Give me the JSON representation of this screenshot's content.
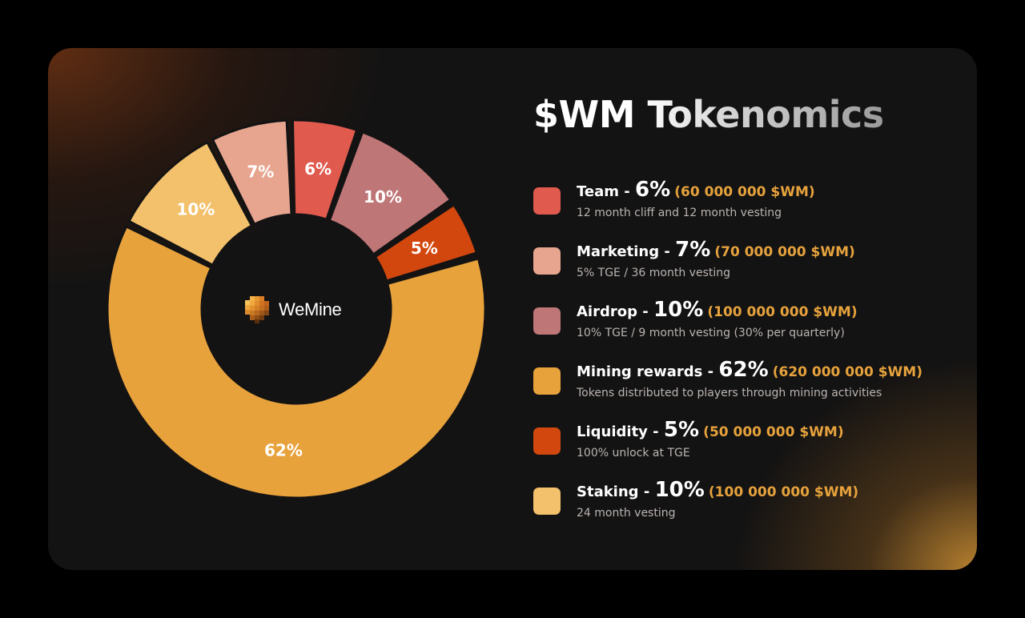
{
  "title": "$WM Tokenomics",
  "brand": {
    "name": "WeMine",
    "logo_icon": "wemine-pixel-logo-icon"
  },
  "chart_data": {
    "type": "pie",
    "style": "donut",
    "title": "$WM Tokenomics",
    "center_label": "WeMine",
    "slices": [
      {
        "name": "Team",
        "value": 6,
        "label": "6%",
        "color": "#e05a4e"
      },
      {
        "name": "Airdrop",
        "value": 10,
        "label": "10%",
        "color": "#bf7676"
      },
      {
        "name": "Liquidity",
        "value": 5,
        "label": "5%",
        "color": "#d2470e"
      },
      {
        "name": "Mining rewards",
        "value": 62,
        "label": "62%",
        "color": "#e8a23c"
      },
      {
        "name": "Staking",
        "value": 10,
        "label": "10%",
        "color": "#f3c06b"
      },
      {
        "name": "Marketing",
        "value": 7,
        "label": "7%",
        "color": "#e7a58f"
      }
    ]
  },
  "legend": [
    {
      "name": "Team",
      "dash": " - ",
      "pct": "6%",
      "amount": "(60 000 000 $WM)",
      "desc": "12 month cliff and 12 month vesting",
      "color": "#e05a4e"
    },
    {
      "name": "Marketing",
      "dash": " - ",
      "pct": "7%",
      "amount": "(70 000 000 $WM)",
      "desc": "5% TGE / 36 month vesting",
      "color": "#e7a58f"
    },
    {
      "name": "Airdrop",
      "dash": " - ",
      "pct": "10%",
      "amount": "(100 000 000 $WM)",
      "desc": "10% TGE / 9 month vesting (30% per quarterly)",
      "color": "#bf7676"
    },
    {
      "name": "Mining rewards",
      "dash": " - ",
      "pct": "62%",
      "amount": "(620 000 000 $WM)",
      "desc": "Tokens distributed to players through mining activities",
      "color": "#e8a23c"
    },
    {
      "name": "Liquidity",
      "dash": " - ",
      "pct": "5%",
      "amount": "(50 000 000 $WM)",
      "desc": "100% unlock at TGE",
      "color": "#d2470e"
    },
    {
      "name": "Staking",
      "dash": " - ",
      "pct": "10%",
      "amount": "(100 000 000 $WM)",
      "desc": "24 month vesting",
      "color": "#f3c06b"
    }
  ]
}
